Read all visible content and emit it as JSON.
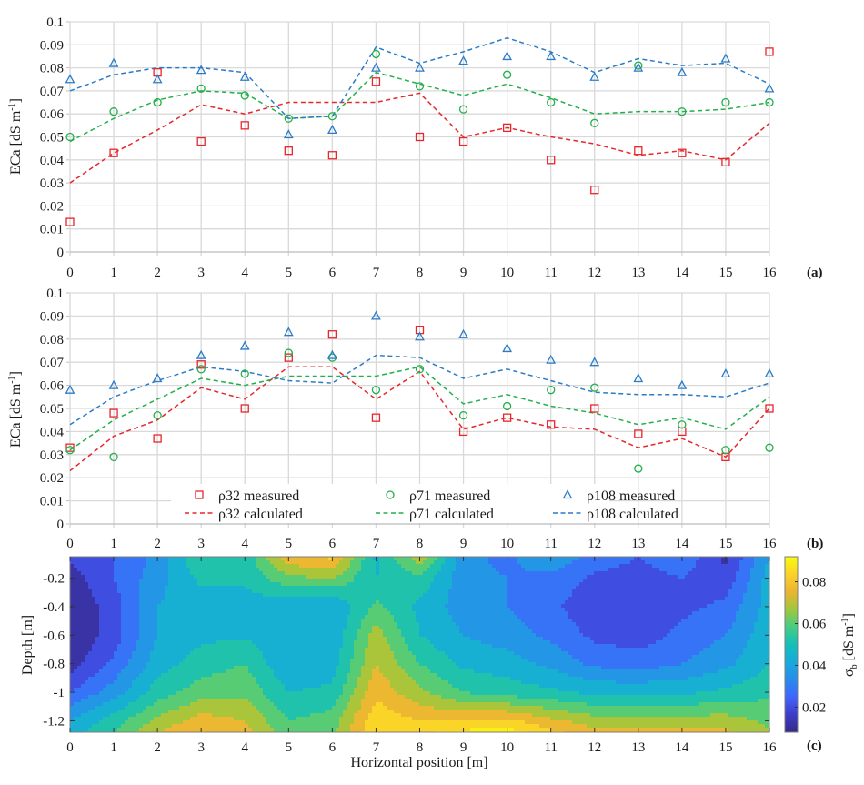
{
  "chart_data": [
    {
      "panel_label": "(a)",
      "type": "scatter+line",
      "ylabel": "ECa [dS m",
      "ylabel_sup": "-1",
      "ylabel_end": "]",
      "xlabel": "",
      "xlim": [
        0,
        16
      ],
      "ylim": [
        0,
        0.1
      ],
      "x": [
        0,
        1,
        2,
        3,
        4,
        5,
        6,
        7,
        8,
        9,
        10,
        11,
        12,
        13,
        14,
        15,
        16
      ],
      "yticks": [
        "0",
        "0.01",
        "0.02",
        "0.03",
        "0.04",
        "0.05",
        "0.06",
        "0.07",
        "0.08",
        "0.09",
        "0.1"
      ],
      "xticks": [
        "0",
        "1",
        "2",
        "3",
        "4",
        "5",
        "6",
        "7",
        "8",
        "9",
        "10",
        "11",
        "12",
        "13",
        "14",
        "15",
        "16"
      ],
      "grid": true,
      "series": [
        {
          "name": "ρ32 measured",
          "kind": "marker",
          "marker": "square",
          "color": "#e8262c",
          "values": [
            0.013,
            0.043,
            0.078,
            0.048,
            0.055,
            0.044,
            0.042,
            0.074,
            0.05,
            0.048,
            0.054,
            0.04,
            0.027,
            0.044,
            0.043,
            0.039,
            0.087
          ]
        },
        {
          "name": "ρ32 calculated",
          "kind": "dashed",
          "color": "#e8262c",
          "values": [
            0.03,
            0.043,
            0.053,
            0.064,
            0.06,
            0.065,
            0.065,
            0.065,
            0.069,
            0.05,
            0.054,
            0.05,
            0.047,
            0.042,
            0.044,
            0.04,
            0.056
          ]
        },
        {
          "name": "ρ71 measured",
          "kind": "marker",
          "marker": "circle",
          "color": "#22b04b",
          "values": [
            0.05,
            0.061,
            0.065,
            0.071,
            0.068,
            0.058,
            0.059,
            0.086,
            0.072,
            0.062,
            0.077,
            0.065,
            0.056,
            0.081,
            0.061,
            0.065,
            0.065
          ]
        },
        {
          "name": "ρ71 calculated",
          "kind": "dashed",
          "color": "#22b04b",
          "values": [
            0.048,
            0.058,
            0.066,
            0.07,
            0.069,
            0.058,
            0.059,
            0.078,
            0.073,
            0.068,
            0.073,
            0.067,
            0.06,
            0.061,
            0.061,
            0.062,
            0.065
          ]
        },
        {
          "name": "ρ108 measured",
          "kind": "marker",
          "marker": "triangle",
          "color": "#2a7cc7",
          "values": [
            0.075,
            0.082,
            0.075,
            0.079,
            0.076,
            0.051,
            0.053,
            0.08,
            0.08,
            0.083,
            0.085,
            0.085,
            0.076,
            0.08,
            0.078,
            0.084,
            0.071
          ]
        },
        {
          "name": "ρ108 calculated",
          "kind": "dashed",
          "color": "#2a7cc7",
          "values": [
            0.07,
            0.077,
            0.08,
            0.08,
            0.078,
            0.058,
            0.059,
            0.089,
            0.082,
            0.087,
            0.093,
            0.087,
            0.078,
            0.084,
            0.081,
            0.082,
            0.073
          ]
        }
      ]
    },
    {
      "panel_label": "(b)",
      "type": "scatter+line",
      "ylabel": "ECa [dS m",
      "ylabel_sup": "-1",
      "ylabel_end": "]",
      "xlabel": "",
      "xlim": [
        0,
        16
      ],
      "ylim": [
        0,
        0.1
      ],
      "x": [
        0,
        1,
        2,
        3,
        4,
        5,
        6,
        7,
        8,
        9,
        10,
        11,
        12,
        13,
        14,
        15,
        16
      ],
      "yticks": [
        "0",
        "0.01",
        "0.02",
        "0.03",
        "0.04",
        "0.05",
        "0.06",
        "0.07",
        "0.08",
        "0.09",
        "0.1"
      ],
      "xticks": [
        "0",
        "1",
        "2",
        "3",
        "4",
        "5",
        "6",
        "7",
        "8",
        "9",
        "10",
        "11",
        "12",
        "13",
        "14",
        "15",
        "16"
      ],
      "grid": true,
      "legend": {
        "placement": "bottom-center",
        "columns": 3
      },
      "series": [
        {
          "name": "ρ32 measured",
          "kind": "marker",
          "marker": "square",
          "color": "#e8262c",
          "values": [
            0.033,
            0.048,
            0.037,
            0.069,
            0.05,
            0.072,
            0.082,
            0.046,
            0.084,
            0.04,
            0.046,
            0.043,
            0.05,
            0.039,
            0.04,
            0.029,
            0.05
          ]
        },
        {
          "name": "ρ32 calculated",
          "kind": "dashed",
          "color": "#e8262c",
          "values": [
            0.023,
            0.038,
            0.045,
            0.059,
            0.054,
            0.068,
            0.068,
            0.054,
            0.066,
            0.041,
            0.046,
            0.042,
            0.041,
            0.033,
            0.037,
            0.029,
            0.05
          ]
        },
        {
          "name": "ρ71 measured",
          "kind": "marker",
          "marker": "circle",
          "color": "#22b04b",
          "values": [
            0.032,
            0.029,
            0.047,
            0.067,
            0.065,
            0.074,
            0.072,
            0.058,
            0.067,
            0.047,
            0.051,
            0.058,
            0.059,
            0.024,
            0.043,
            0.032,
            0.033
          ]
        },
        {
          "name": "ρ71 calculated",
          "kind": "dashed",
          "color": "#22b04b",
          "values": [
            0.032,
            0.045,
            0.054,
            0.063,
            0.06,
            0.064,
            0.064,
            0.064,
            0.068,
            0.052,
            0.056,
            0.051,
            0.048,
            0.043,
            0.046,
            0.041,
            0.055
          ]
        },
        {
          "name": "ρ108 measured",
          "kind": "marker",
          "marker": "triangle",
          "color": "#2a7cc7",
          "values": [
            0.058,
            0.06,
            0.063,
            0.073,
            0.077,
            0.083,
            0.073,
            0.09,
            0.081,
            0.082,
            0.076,
            0.071,
            0.07,
            0.063,
            0.06,
            0.065,
            0.065
          ]
        },
        {
          "name": "ρ108 calculated",
          "kind": "dashed",
          "color": "#2a7cc7",
          "values": [
            0.043,
            0.055,
            0.062,
            0.068,
            0.066,
            0.062,
            0.061,
            0.073,
            0.072,
            0.063,
            0.067,
            0.062,
            0.057,
            0.056,
            0.056,
            0.055,
            0.061
          ]
        }
      ]
    },
    {
      "panel_label": "(c)",
      "type": "heatmap",
      "xlabel": "Horizontal position [m]",
      "ylabel": "Depth [m]",
      "xlim": [
        0,
        16
      ],
      "ylim": [
        -1.28,
        -0.05
      ],
      "xticks": [
        "0",
        "1",
        "2",
        "3",
        "4",
        "5",
        "6",
        "7",
        "8",
        "9",
        "10",
        "11",
        "12",
        "13",
        "14",
        "15",
        "16"
      ],
      "yticks": [
        {
          "value": -0.2,
          "label": "-0.2"
        },
        {
          "value": -0.4,
          "label": "-0.4"
        },
        {
          "value": -0.6,
          "label": "-0.6"
        },
        {
          "value": -0.8,
          "label": "-0.8"
        },
        {
          "value": -1.0,
          "label": "-1"
        },
        {
          "value": -1.2,
          "label": "-1.2"
        }
      ],
      "x": [
        0,
        1,
        2,
        3,
        4,
        5,
        6,
        7,
        8,
        9,
        10,
        11,
        12,
        13,
        14,
        15,
        16
      ],
      "depths": [
        -0.05,
        -0.2,
        -0.4,
        -0.6,
        -0.8,
        -1.0,
        -1.2,
        -1.28
      ],
      "values": [
        [
          0.018,
          0.024,
          0.034,
          0.056,
          0.05,
          0.078,
          0.082,
          0.046,
          0.07,
          0.034,
          0.03,
          0.038,
          0.03,
          0.024,
          0.03,
          0.014,
          0.04
        ],
        [
          0.012,
          0.024,
          0.037,
          0.05,
          0.05,
          0.062,
          0.064,
          0.048,
          0.054,
          0.035,
          0.032,
          0.03,
          0.022,
          0.02,
          0.024,
          0.018,
          0.044
        ],
        [
          0.008,
          0.02,
          0.04,
          0.044,
          0.044,
          0.042,
          0.04,
          0.058,
          0.046,
          0.036,
          0.032,
          0.026,
          0.018,
          0.016,
          0.022,
          0.026,
          0.044
        ],
        [
          0.008,
          0.02,
          0.04,
          0.046,
          0.047,
          0.041,
          0.041,
          0.068,
          0.048,
          0.04,
          0.036,
          0.03,
          0.022,
          0.02,
          0.026,
          0.032,
          0.046
        ],
        [
          0.012,
          0.026,
          0.044,
          0.052,
          0.056,
          0.04,
          0.044,
          0.072,
          0.056,
          0.046,
          0.044,
          0.038,
          0.03,
          0.028,
          0.032,
          0.038,
          0.048
        ],
        [
          0.024,
          0.036,
          0.052,
          0.06,
          0.062,
          0.048,
          0.05,
          0.078,
          0.066,
          0.056,
          0.052,
          0.05,
          0.046,
          0.046,
          0.046,
          0.05,
          0.054
        ],
        [
          0.04,
          0.052,
          0.066,
          0.076,
          0.072,
          0.056,
          0.06,
          0.086,
          0.08,
          0.08,
          0.082,
          0.074,
          0.068,
          0.068,
          0.068,
          0.068,
          0.062
        ],
        [
          0.044,
          0.056,
          0.072,
          0.08,
          0.076,
          0.058,
          0.062,
          0.088,
          0.086,
          0.09,
          0.092,
          0.082,
          0.074,
          0.074,
          0.074,
          0.074,
          0.064
        ]
      ],
      "colorbar": {
        "label": "σ",
        "label_sub": "b",
        "label_rest": " [dS m",
        "label_sup": "-1",
        "label_end": "]",
        "range": [
          0.008,
          0.092
        ],
        "ticks": [
          {
            "value": 0.02,
            "label": "0.02"
          },
          {
            "value": 0.04,
            "label": "0.04"
          },
          {
            "value": 0.06,
            "label": "0.06"
          },
          {
            "value": 0.08,
            "label": "0.08"
          }
        ],
        "colormap": "parula",
        "levels": [
          0.008,
          0.016,
          0.024,
          0.032,
          0.04,
          0.048,
          0.056,
          0.064,
          0.072,
          0.08,
          0.088,
          0.092
        ]
      }
    }
  ]
}
